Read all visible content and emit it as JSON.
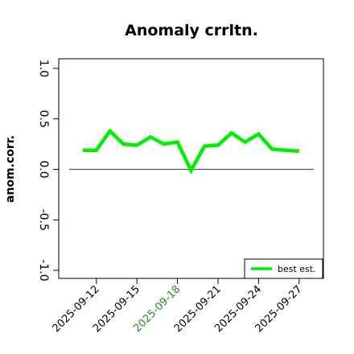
{
  "chart_data": {
    "type": "line",
    "title": "Anomaly crrltn.",
    "xlabel": "",
    "ylabel": "anom.corr.",
    "x": [
      "2025-09-11",
      "2025-09-12",
      "2025-09-13",
      "2025-09-14",
      "2025-09-15",
      "2025-09-16",
      "2025-09-17",
      "2025-09-18",
      "2025-09-19",
      "2025-09-20",
      "2025-09-21",
      "2025-09-22",
      "2025-09-23",
      "2025-09-24",
      "2025-09-25",
      "2025-09-26",
      "2025-09-27"
    ],
    "x_tick_labels": [
      "2025-09-12",
      "2025-09-15",
      "2025-09-18",
      "2025-09-21",
      "2025-09-24",
      "2025-09-27"
    ],
    "highlighted_tick": "2025-09-18",
    "y_ticks": [
      "-1.0",
      "-0.5",
      "0.0",
      "0.5",
      "1.0"
    ],
    "ylim": [
      -1.0,
      1.0
    ],
    "reference_line": 0.0,
    "series": [
      {
        "name": "best est.",
        "color": "#00ee00",
        "values": [
          0.19,
          0.19,
          0.38,
          0.25,
          0.24,
          0.32,
          0.25,
          0.27,
          -0.01,
          0.23,
          0.24,
          0.36,
          0.27,
          0.35,
          0.2,
          0.19,
          0.18
        ]
      }
    ],
    "legend": {
      "position": "bottom-right"
    },
    "grid": false
  },
  "colors": {
    "highlight_tick": "#228b22",
    "axis": "#000000",
    "reference_line": "#555555"
  }
}
